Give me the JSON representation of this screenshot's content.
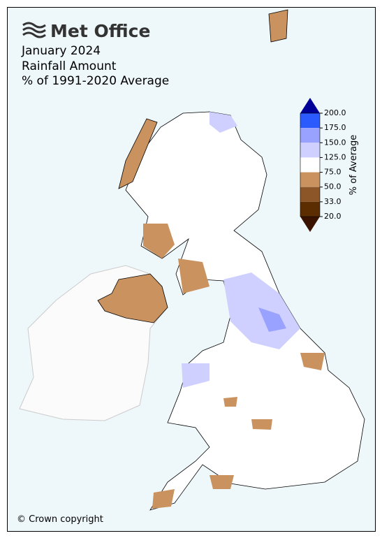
{
  "header": {
    "logo": "Met Office",
    "title": "January 2024",
    "subtitle": "Rainfall Amount",
    "description": "% of 1991-2020 Average"
  },
  "colorbar": {
    "label": "% of Average",
    "ticks": [
      {
        "value": 200,
        "label": "200.0"
      },
      {
        "value": 175,
        "label": "175.0"
      },
      {
        "value": 150,
        "label": "150.0"
      },
      {
        "value": 125,
        "label": "125.0"
      },
      {
        "value": 75,
        "label": "75.0"
      },
      {
        "value": 50,
        "label": "50.0"
      },
      {
        "value": 33,
        "label": "33.0"
      },
      {
        "value": 20,
        "label": "20.0"
      }
    ],
    "colors": [
      "#2b5bff",
      "#9aa2ff",
      "#cfd0ff",
      "#ffffff",
      "#c9925f",
      "#8c5628",
      "#5c2d00"
    ],
    "over_color": "#000099",
    "under_color": "#3a1200"
  },
  "footer": {
    "copyright": "© Crown copyright"
  }
}
